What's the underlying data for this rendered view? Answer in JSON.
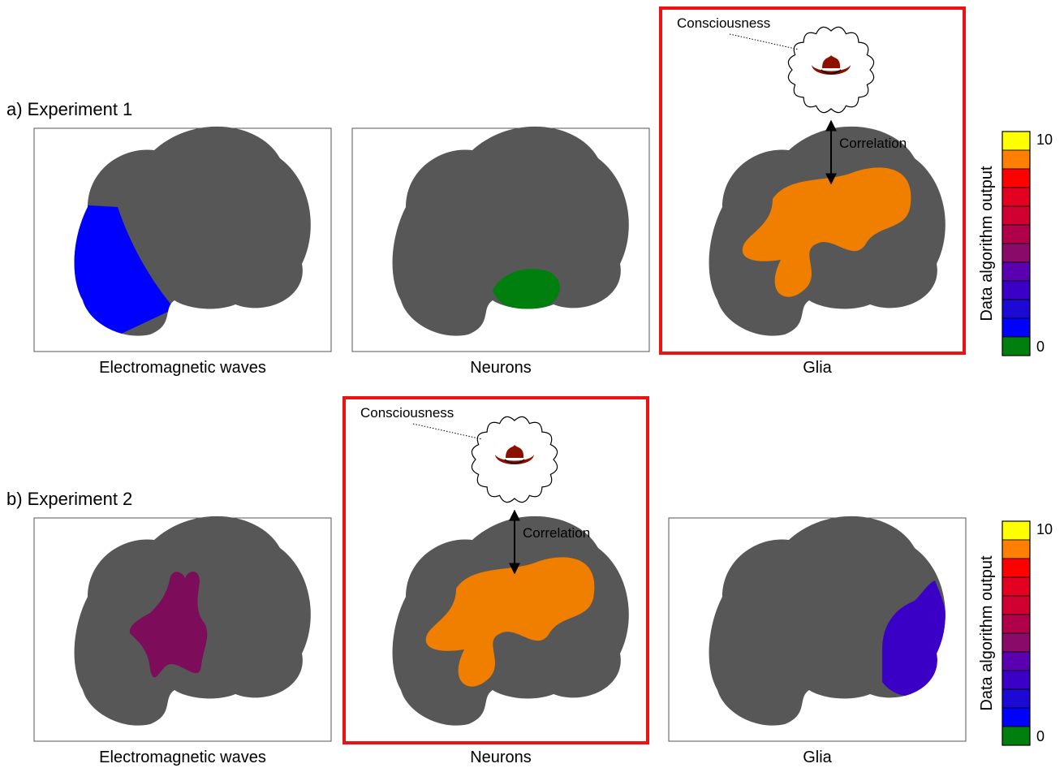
{
  "experiments": [
    {
      "heading": "a) Experiment 1",
      "panels": [
        {
          "caption": "Electromagnetic waves",
          "highlighted": false,
          "region": "back",
          "region_color": "#0000ff"
        },
        {
          "caption": "Neurons",
          "highlighted": false,
          "region": "temporal",
          "region_color": "#007f0e"
        },
        {
          "caption": "Glia",
          "highlighted": true,
          "region": "center-large",
          "region_color": "#f07f00",
          "consciousness_label": "Consciousness",
          "correlation_label": "Correlation"
        }
      ],
      "scale": {
        "title": "Data algorithm output",
        "max_label": "10",
        "min_label": "0"
      }
    },
    {
      "heading": "b) Experiment 2",
      "panels": [
        {
          "caption": "Electromagnetic waves",
          "highlighted": false,
          "region": "center-small",
          "region_color": "#7d0d5a"
        },
        {
          "caption": "Neurons",
          "highlighted": true,
          "region": "center-large",
          "region_color": "#f07f00",
          "consciousness_label": "Consciousness",
          "correlation_label": "Correlation"
        },
        {
          "caption": "Glia",
          "highlighted": false,
          "region": "front",
          "region_color": "#3b00c6"
        }
      ],
      "scale": {
        "title": "Data algorithm output",
        "max_label": "10",
        "min_label": "0"
      }
    }
  ],
  "colors": {
    "brain": "#575757",
    "highlight_frame": "#ee1111",
    "hat": "#8b1000",
    "scale": [
      "#007f0e",
      "#0000ff",
      "#1c0ad4",
      "#3b00c6",
      "#5a00b0",
      "#8a0a6a",
      "#b0004a",
      "#d00030",
      "#e40020",
      "#ff0000",
      "#ff7f00",
      "#ffff00"
    ]
  },
  "icons": {
    "hat": "cowboy-hat-icon",
    "thought": "thought-bubble-icon"
  }
}
